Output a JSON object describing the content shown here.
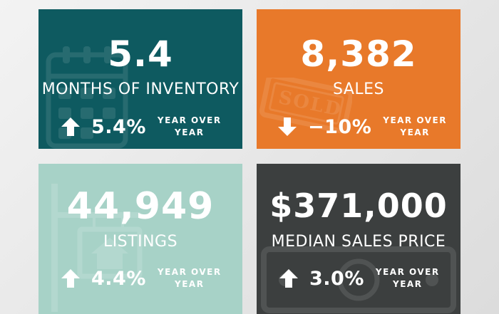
{
  "cards": {
    "inventory": {
      "value": "5.4",
      "label": "MONTHS OF INVENTORY",
      "change": "5.4%",
      "direction": "up",
      "change_caption_line1": "YEAR OVER",
      "change_caption_line2": "YEAR",
      "background": "#0e5a60",
      "watermark_icon": "calendar-icon"
    },
    "sales": {
      "value": "8,382",
      "label": "SALES",
      "change": "−10%",
      "direction": "down",
      "change_caption_line1": "YEAR OVER",
      "change_caption_line2": "YEAR",
      "background": "#e8792a",
      "watermark_icon": "sold-stamp-icon",
      "watermark_text": "SOLD"
    },
    "listings": {
      "value": "44,949",
      "label": "LISTINGS",
      "change": "4.4%",
      "direction": "up",
      "change_caption_line1": "YEAR OVER",
      "change_caption_line2": "YEAR",
      "background": "#a7d2c7",
      "watermark_icon": "house-sign-icon"
    },
    "price": {
      "value": "$371,000",
      "label": "MEDIAN SALES PRICE",
      "change": "3.0%",
      "direction": "up",
      "change_caption_line1": "YEAR OVER",
      "change_caption_line2": "YEAR",
      "background": "#3c3f3f",
      "watermark_icon": "money-bill-icon"
    }
  }
}
